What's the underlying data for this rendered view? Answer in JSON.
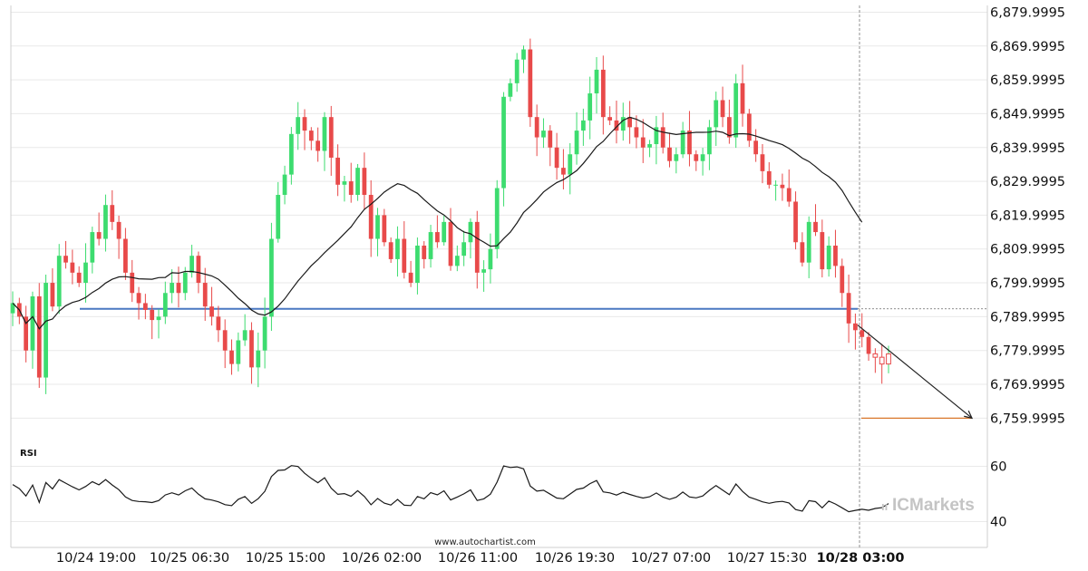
{
  "watermark": "www.autochartist.com",
  "brand": {
    "text": "ICMarkets",
    "color": "#c4c4c4"
  },
  "colors": {
    "bull": "#3ddc6f",
    "bear": "#e84a4a",
    "support_line": "#4a78c2",
    "target_line": "#d9772b",
    "ma": "#1a1a1a",
    "grid": "#e9e9e9"
  },
  "chart_data": [
    {
      "type": "candlestick",
      "title": "",
      "yticks": [
        "6,879.9995",
        "6,869.9995",
        "6,859.9995",
        "6,849.9995",
        "6,839.9995",
        "6,829.9995",
        "6,819.9995",
        "6,809.9995",
        "6,799.9995",
        "6,789.9995",
        "6,779.9995",
        "6,769.9995",
        "6,759.9995"
      ],
      "ylim": [
        6755.0,
        6882.0
      ],
      "grid": true,
      "xticks": [
        {
          "label": "10/24 19:00",
          "bold": false
        },
        {
          "label": "10/25 06:30",
          "bold": false
        },
        {
          "label": "10/25 15:00",
          "bold": false
        },
        {
          "label": "10/26 02:00",
          "bold": false
        },
        {
          "label": "10/26 11:00",
          "bold": false
        },
        {
          "label": "10/26 19:30",
          "bold": false
        },
        {
          "label": "10/27 07:00",
          "bold": false
        },
        {
          "label": "10/27 15:30",
          "bold": false
        },
        {
          "label": "10/28 03:00",
          "bold": true
        }
      ],
      "support_level": 6792.3,
      "target_level": 6760.0,
      "close_pattern": [
        6794,
        6790,
        6780,
        6796,
        6772,
        6800,
        6793,
        6808,
        6806,
        6803,
        6800,
        6806,
        6815,
        6813,
        6823,
        6818,
        6813,
        6803,
        6797,
        6794,
        6792,
        6789,
        6790,
        6797,
        6800,
        6797,
        6803,
        6808,
        6800,
        6793,
        6790,
        6786,
        6780,
        6776,
        6783,
        6786,
        6775,
        6780,
        6790,
        6813,
        6826,
        6832,
        6844,
        6849,
        6845,
        6842,
        6839,
        6849,
        6837,
        6829,
        6830,
        6826,
        6834,
        6826,
        6813,
        6820,
        6812,
        6807,
        6813,
        6803,
        6800,
        6811,
        6807,
        6815,
        6812,
        6818,
        6805,
        6808,
        6812,
        6818,
        6803,
        6804,
        6810,
        6828,
        6855,
        6859,
        6866,
        6869,
        6849,
        6843,
        6845,
        6840,
        6834,
        6832,
        6838,
        6845,
        6848,
        6856,
        6863,
        6849,
        6848,
        6845,
        6849,
        6846,
        6843,
        6840,
        6841,
        6846,
        6840,
        6836,
        6838,
        6845,
        6838,
        6836,
        6838,
        6846,
        6854,
        6849,
        6843,
        6859,
        6850,
        6842,
        6838,
        6833,
        6829,
        6829,
        6828,
        6824,
        6812,
        6806,
        6818,
        6815,
        6804,
        6811,
        6805,
        6797,
        6788,
        6786,
        6784,
        6779,
        6778,
        6776,
        6779
      ]
    },
    {
      "type": "line",
      "ylabel": "RSI",
      "yticks": [
        "60",
        "40"
      ],
      "ylim": [
        32,
        68
      ]
    }
  ]
}
